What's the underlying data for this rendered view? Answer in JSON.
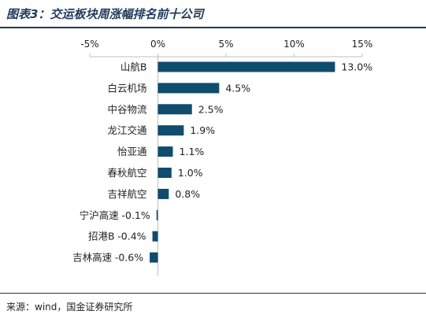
{
  "figure": {
    "title": "图表3：交运板块周涨幅排名前十公司",
    "source": "来源：wind，国金证券研究所"
  },
  "colors": {
    "bar": "#0f4c6e",
    "title": "#1f3a5a",
    "axis": "#bfbfbf"
  },
  "chart_data": {
    "type": "bar",
    "orientation": "horizontal",
    "categories": [
      "山航B",
      "白云机场",
      "中谷物流",
      "龙江交通",
      "怡亚通",
      "春秋航空",
      "吉祥航空",
      "宁沪高速",
      "招港B",
      "吉林高速"
    ],
    "values": [
      13.0,
      4.5,
      2.5,
      1.9,
      1.1,
      1.0,
      0.8,
      -0.1,
      -0.4,
      -0.6
    ],
    "value_labels": [
      "13.0%",
      "4.5%",
      "2.5%",
      "1.9%",
      "1.1%",
      "1.0%",
      "0.8%",
      "-0.1%",
      "-0.4%",
      "-0.6%"
    ],
    "xlim": [
      -5,
      15
    ],
    "xticks": [
      -5,
      0,
      5,
      10,
      15
    ],
    "xtick_labels": [
      "-5%",
      "0%",
      "5%",
      "10%",
      "15%"
    ],
    "xaxis_position": "top",
    "grid": false,
    "legend": "none"
  }
}
